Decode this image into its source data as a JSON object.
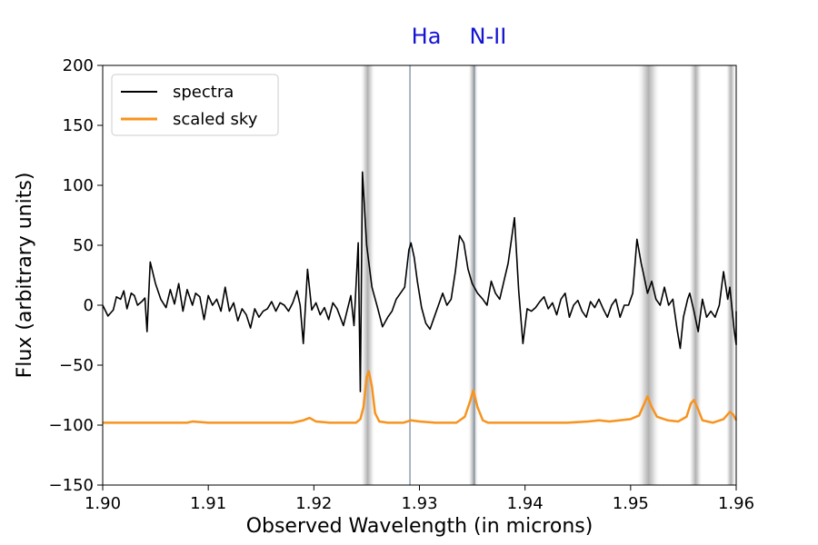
{
  "chart_data": {
    "type": "line",
    "xlabel": "Observed Wavelength (in microns)",
    "ylabel": "Flux (arbitrary units)",
    "xlim": [
      1.9,
      1.96
    ],
    "ylim": [
      -150,
      200
    ],
    "xticks": [
      "1.90",
      "1.91",
      "1.92",
      "1.93",
      "1.94",
      "1.95",
      "1.96"
    ],
    "yticks": [
      "200",
      "150",
      "100",
      "50",
      "0",
      "−50",
      "−100",
      "−150"
    ],
    "ytick_values": [
      200,
      150,
      100,
      50,
      0,
      -50,
      -100,
      -150
    ],
    "grid": false,
    "legend_position": "top-left",
    "line_markers": [
      {
        "label": "Ha",
        "x": 1.9291,
        "color": "#1414d2",
        "line_color": "#7a8fa6"
      },
      {
        "label": "N-II",
        "x": 1.9352,
        "color": "#1414d2",
        "line_color": "#7a8fa6"
      }
    ],
    "sky_bands": [
      {
        "x0": 1.9244,
        "x1": 1.9258
      },
      {
        "x0": 1.9346,
        "x1": 1.9356
      },
      {
        "x0": 1.9506,
        "x1": 1.9528
      },
      {
        "x0": 1.9555,
        "x1": 1.9568
      },
      {
        "x0": 1.959,
        "x1": 1.96
      }
    ],
    "series": [
      {
        "name": "spectra",
        "color": "#000000",
        "points": [
          [
            1.9,
            0
          ],
          [
            1.9005,
            -9
          ],
          [
            1.901,
            -4
          ],
          [
            1.9013,
            7
          ],
          [
            1.9017,
            5
          ],
          [
            1.902,
            12
          ],
          [
            1.9023,
            -3
          ],
          [
            1.9027,
            10
          ],
          [
            1.903,
            8
          ],
          [
            1.9033,
            0
          ],
          [
            1.9037,
            3
          ],
          [
            1.904,
            6
          ],
          [
            1.9042,
            -22
          ],
          [
            1.9045,
            36
          ],
          [
            1.905,
            18
          ],
          [
            1.9055,
            5
          ],
          [
            1.906,
            -2
          ],
          [
            1.9064,
            13
          ],
          [
            1.9068,
            1
          ],
          [
            1.9072,
            18
          ],
          [
            1.9076,
            -5
          ],
          [
            1.908,
            13
          ],
          [
            1.9085,
            0
          ],
          [
            1.9088,
            10
          ],
          [
            1.9092,
            7
          ],
          [
            1.9096,
            -12
          ],
          [
            1.91,
            8
          ],
          [
            1.9104,
            0
          ],
          [
            1.9108,
            5
          ],
          [
            1.9112,
            -5
          ],
          [
            1.9116,
            15
          ],
          [
            1.912,
            -5
          ],
          [
            1.9124,
            2
          ],
          [
            1.9128,
            -13
          ],
          [
            1.9132,
            -3
          ],
          [
            1.9136,
            -8
          ],
          [
            1.914,
            -19
          ],
          [
            1.9144,
            -3
          ],
          [
            1.9148,
            -10
          ],
          [
            1.9152,
            -5
          ],
          [
            1.9156,
            -3
          ],
          [
            1.916,
            3
          ],
          [
            1.9164,
            -5
          ],
          [
            1.9168,
            2
          ],
          [
            1.9172,
            0
          ],
          [
            1.9176,
            -5
          ],
          [
            1.918,
            2
          ],
          [
            1.9184,
            12
          ],
          [
            1.9187,
            0
          ],
          [
            1.919,
            -32
          ],
          [
            1.9194,
            30
          ],
          [
            1.9198,
            -4
          ],
          [
            1.9202,
            2
          ],
          [
            1.9206,
            -8
          ],
          [
            1.921,
            -2
          ],
          [
            1.9214,
            -12
          ],
          [
            1.9218,
            2
          ],
          [
            1.9222,
            -3
          ],
          [
            1.9228,
            -17
          ],
          [
            1.9235,
            8
          ],
          [
            1.9238,
            -17
          ],
          [
            1.9242,
            52
          ],
          [
            1.9244,
            -72
          ],
          [
            1.9246,
            111
          ],
          [
            1.925,
            50
          ],
          [
            1.9255,
            15
          ],
          [
            1.926,
            -1
          ],
          [
            1.9265,
            -18
          ],
          [
            1.927,
            -10
          ],
          [
            1.9274,
            -5
          ],
          [
            1.9278,
            5
          ],
          [
            1.9282,
            10
          ],
          [
            1.9286,
            15
          ],
          [
            1.929,
            46
          ],
          [
            1.9292,
            52
          ],
          [
            1.9295,
            40
          ],
          [
            1.9298,
            20
          ],
          [
            1.9302,
            -2
          ],
          [
            1.9306,
            -15
          ],
          [
            1.931,
            -20
          ],
          [
            1.9314,
            -10
          ],
          [
            1.9318,
            0
          ],
          [
            1.9322,
            10
          ],
          [
            1.9326,
            0
          ],
          [
            1.933,
            5
          ],
          [
            1.9334,
            28
          ],
          [
            1.9338,
            58
          ],
          [
            1.9342,
            52
          ],
          [
            1.9346,
            30
          ],
          [
            1.935,
            18
          ],
          [
            1.9355,
            10
          ],
          [
            1.936,
            5
          ],
          [
            1.9364,
            0
          ],
          [
            1.9368,
            20
          ],
          [
            1.9372,
            10
          ],
          [
            1.9376,
            5
          ],
          [
            1.938,
            20
          ],
          [
            1.9384,
            35
          ],
          [
            1.939,
            73
          ],
          [
            1.9394,
            12
          ],
          [
            1.9398,
            -32
          ],
          [
            1.9402,
            -3
          ],
          [
            1.9406,
            -5
          ],
          [
            1.941,
            -2
          ],
          [
            1.9414,
            3
          ],
          [
            1.9418,
            7
          ],
          [
            1.9422,
            -3
          ],
          [
            1.9426,
            2
          ],
          [
            1.943,
            -8
          ],
          [
            1.9434,
            5
          ],
          [
            1.9438,
            10
          ],
          [
            1.9442,
            -10
          ],
          [
            1.9446,
            0
          ],
          [
            1.945,
            4
          ],
          [
            1.9454,
            -5
          ],
          [
            1.9458,
            -10
          ],
          [
            1.9462,
            3
          ],
          [
            1.9466,
            -2
          ],
          [
            1.947,
            5
          ],
          [
            1.9474,
            -3
          ],
          [
            1.9478,
            -10
          ],
          [
            1.9482,
            0
          ],
          [
            1.9486,
            5
          ],
          [
            1.949,
            -10
          ],
          [
            1.9494,
            0
          ],
          [
            1.9498,
            0
          ],
          [
            1.9502,
            10
          ],
          [
            1.9506,
            55
          ],
          [
            1.951,
            35
          ],
          [
            1.9512,
            27
          ],
          [
            1.9516,
            10
          ],
          [
            1.952,
            20
          ],
          [
            1.9524,
            5
          ],
          [
            1.9528,
            0
          ],
          [
            1.9532,
            15
          ],
          [
            1.9536,
            0
          ],
          [
            1.954,
            5
          ],
          [
            1.9544,
            -20
          ],
          [
            1.9547,
            -36
          ],
          [
            1.955,
            -10
          ],
          [
            1.9554,
            5
          ],
          [
            1.9556,
            10
          ],
          [
            1.956,
            -5
          ],
          [
            1.9564,
            -22
          ],
          [
            1.9568,
            5
          ],
          [
            1.9572,
            -10
          ],
          [
            1.9576,
            -5
          ],
          [
            1.958,
            -10
          ],
          [
            1.9584,
            0
          ],
          [
            1.9588,
            28
          ],
          [
            1.9592,
            5
          ],
          [
            1.9594,
            15
          ],
          [
            1.9598,
            -20
          ],
          [
            1.96,
            -33
          ],
          [
            1.96,
            -5
          ]
        ]
      },
      {
        "name": "scaled sky",
        "color": "#f7931e",
        "points": [
          [
            1.9,
            -98
          ],
          [
            1.908,
            -98
          ],
          [
            1.9085,
            -97
          ],
          [
            1.91,
            -98
          ],
          [
            1.918,
            -98
          ],
          [
            1.919,
            -96
          ],
          [
            1.9196,
            -94
          ],
          [
            1.9202,
            -97
          ],
          [
            1.9215,
            -98
          ],
          [
            1.924,
            -98
          ],
          [
            1.9244,
            -95
          ],
          [
            1.9247,
            -85
          ],
          [
            1.925,
            -60
          ],
          [
            1.9252,
            -55
          ],
          [
            1.9255,
            -68
          ],
          [
            1.9258,
            -90
          ],
          [
            1.9262,
            -97
          ],
          [
            1.927,
            -98
          ],
          [
            1.9285,
            -98
          ],
          [
            1.9292,
            -96
          ],
          [
            1.93,
            -97
          ],
          [
            1.9315,
            -98
          ],
          [
            1.9335,
            -98
          ],
          [
            1.9343,
            -93
          ],
          [
            1.9348,
            -80
          ],
          [
            1.9351,
            -71
          ],
          [
            1.9355,
            -85
          ],
          [
            1.936,
            -96
          ],
          [
            1.9365,
            -98
          ],
          [
            1.94,
            -98
          ],
          [
            1.944,
            -98
          ],
          [
            1.946,
            -97
          ],
          [
            1.947,
            -96
          ],
          [
            1.948,
            -97
          ],
          [
            1.95,
            -95
          ],
          [
            1.9508,
            -92
          ],
          [
            1.9513,
            -82
          ],
          [
            1.9516,
            -76
          ],
          [
            1.952,
            -85
          ],
          [
            1.9525,
            -93
          ],
          [
            1.9535,
            -96
          ],
          [
            1.9545,
            -97
          ],
          [
            1.9553,
            -93
          ],
          [
            1.9557,
            -82
          ],
          [
            1.956,
            -79
          ],
          [
            1.9564,
            -87
          ],
          [
            1.9568,
            -96
          ],
          [
            1.9578,
            -98
          ],
          [
            1.9588,
            -95
          ],
          [
            1.9594,
            -89
          ],
          [
            1.9597,
            -91
          ],
          [
            1.96,
            -96
          ]
        ]
      }
    ]
  }
}
